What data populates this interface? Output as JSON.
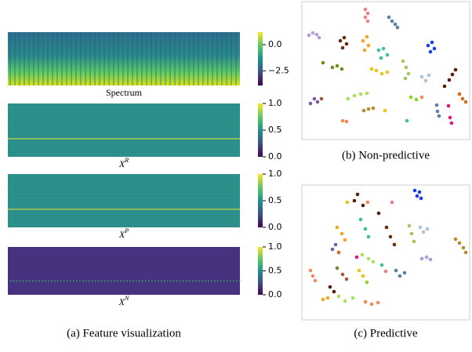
{
  "panel_a": {
    "caption": "(a) Feature visualization",
    "maps": [
      {
        "label": "Spectrum",
        "clim": [
          -3.9,
          1.2
        ],
        "ticks": [
          {
            "value": 0,
            "label": "0.0"
          },
          {
            "value": -2.5,
            "label": "−2.5"
          }
        ]
      },
      {
        "label": "X",
        "superscript": "R",
        "clim": [
          0,
          1
        ],
        "ticks": [
          {
            "value": 1,
            "label": "1.0"
          },
          0.5,
          {
            "value": 0,
            "label": "0.0"
          }
        ]
      },
      {
        "label": "X",
        "superscript": "P",
        "clim": [
          0,
          1
        ],
        "ticks": [
          {
            "value": 1,
            "label": "1.0"
          },
          0.5,
          {
            "value": 0,
            "label": "0.0"
          }
        ]
      },
      {
        "label": "X",
        "superscript": "N",
        "clim": [
          0,
          1
        ],
        "ticks": [
          {
            "value": 1,
            "label": "1.0"
          },
          0.5,
          {
            "value": 0,
            "label": "0.0"
          }
        ]
      }
    ]
  },
  "panel_b": {
    "caption": "(b) Non-predictive"
  },
  "panel_c": {
    "caption": "(c) Predictive"
  }
}
